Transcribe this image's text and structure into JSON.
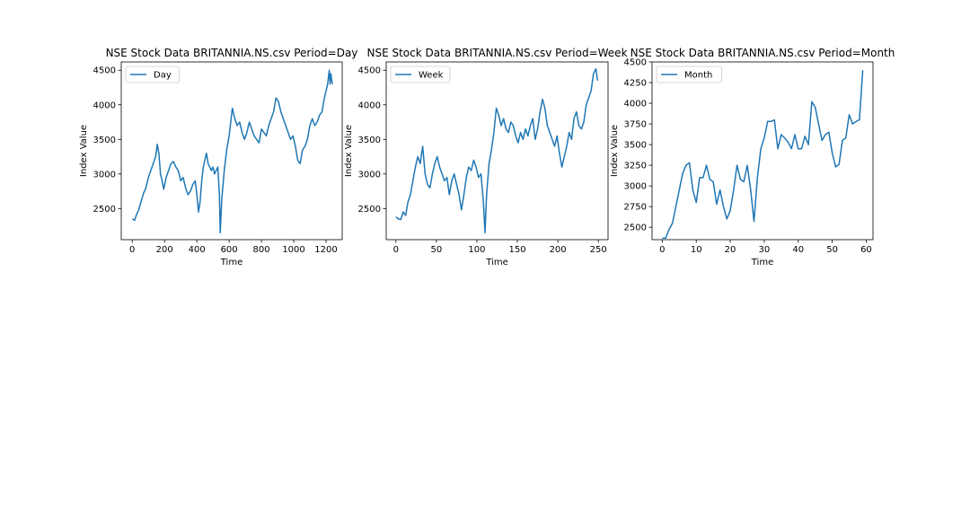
{
  "line_color": "#1f77b4",
  "chart_data": [
    {
      "type": "line",
      "title": "NSE Stock Data BRITANNIA.NS.csv Period=Day",
      "xlabel": "Time",
      "ylabel": "Index Value",
      "xlim": [
        -68,
        1300
      ],
      "ylim": [
        2050,
        4620
      ],
      "xticks": [
        0,
        200,
        400,
        600,
        800,
        1000,
        1200
      ],
      "yticks": [
        2500,
        3000,
        3500,
        4000,
        4500
      ],
      "grid": false,
      "legend_position": "upper left",
      "series": [
        {
          "name": "Day",
          "x": [
            0,
            15,
            25,
            40,
            55,
            70,
            85,
            100,
            115,
            130,
            145,
            155,
            165,
            175,
            185,
            195,
            210,
            225,
            240,
            255,
            270,
            285,
            300,
            315,
            330,
            345,
            360,
            375,
            390,
            400,
            410,
            420,
            430,
            440,
            450,
            460,
            470,
            480,
            490,
            500,
            510,
            520,
            530,
            540,
            545,
            555,
            570,
            585,
            600,
            610,
            620,
            635,
            650,
            665,
            680,
            695,
            710,
            725,
            740,
            755,
            770,
            785,
            800,
            815,
            830,
            845,
            860,
            875,
            890,
            905,
            920,
            935,
            950,
            965,
            980,
            995,
            1010,
            1025,
            1040,
            1055,
            1070,
            1085,
            1100,
            1115,
            1130,
            1145,
            1160,
            1175,
            1190,
            1200,
            1210,
            1215,
            1220,
            1225,
            1230,
            1235,
            1240
          ],
          "y": [
            2350,
            2330,
            2400,
            2480,
            2600,
            2720,
            2800,
            2950,
            3050,
            3150,
            3250,
            3430,
            3300,
            3000,
            2900,
            2780,
            2950,
            3050,
            3150,
            3180,
            3100,
            3050,
            2900,
            2950,
            2800,
            2700,
            2750,
            2850,
            2900,
            2700,
            2450,
            2600,
            2900,
            3100,
            3200,
            3300,
            3150,
            3100,
            3050,
            3100,
            3000,
            3050,
            3100,
            2700,
            2150,
            2650,
            3050,
            3350,
            3550,
            3750,
            3950,
            3800,
            3700,
            3750,
            3600,
            3500,
            3600,
            3750,
            3650,
            3550,
            3500,
            3450,
            3650,
            3600,
            3550,
            3700,
            3800,
            3900,
            4100,
            4050,
            3900,
            3800,
            3700,
            3600,
            3500,
            3550,
            3400,
            3200,
            3150,
            3350,
            3400,
            3500,
            3700,
            3800,
            3700,
            3750,
            3850,
            3900,
            4100,
            4200,
            4300,
            4400,
            4500,
            4300,
            4450,
            4350,
            4300
          ]
        }
      ]
    },
    {
      "type": "line",
      "title": "NSE Stock Data BRITANNIA.NS.csv Period=Week",
      "xlabel": "Time",
      "ylabel": "Index Value",
      "xlim": [
        -12,
        262
      ],
      "ylim": [
        2050,
        4620
      ],
      "xticks": [
        0,
        50,
        100,
        150,
        200,
        250
      ],
      "yticks": [
        2500,
        3000,
        3500,
        4000,
        4500
      ],
      "grid": false,
      "legend_position": "upper left",
      "series": [
        {
          "name": "Week",
          "x": [
            0,
            3,
            6,
            9,
            12,
            15,
            18,
            21,
            24,
            27,
            30,
            33,
            36,
            39,
            42,
            45,
            48,
            51,
            54,
            57,
            60,
            63,
            66,
            69,
            72,
            75,
            78,
            81,
            84,
            87,
            90,
            93,
            96,
            99,
            102,
            105,
            108,
            110,
            112,
            115,
            118,
            121,
            124,
            127,
            130,
            133,
            136,
            139,
            142,
            145,
            148,
            151,
            154,
            157,
            160,
            163,
            166,
            169,
            172,
            175,
            178,
            181,
            184,
            187,
            190,
            193,
            196,
            199,
            202,
            205,
            208,
            211,
            214,
            217,
            220,
            223,
            226,
            229,
            232,
            235,
            238,
            241,
            244,
            247,
            249
          ],
          "y": [
            2380,
            2350,
            2340,
            2450,
            2400,
            2600,
            2700,
            2900,
            3100,
            3250,
            3150,
            3400,
            3000,
            2850,
            2800,
            3000,
            3150,
            3250,
            3100,
            3000,
            2900,
            2950,
            2700,
            2900,
            3000,
            2850,
            2700,
            2480,
            2700,
            2950,
            3100,
            3050,
            3200,
            3100,
            2950,
            3000,
            2600,
            2150,
            2700,
            3150,
            3350,
            3600,
            3950,
            3850,
            3700,
            3800,
            3650,
            3600,
            3750,
            3700,
            3550,
            3450,
            3600,
            3500,
            3650,
            3550,
            3700,
            3800,
            3500,
            3650,
            3900,
            4080,
            3950,
            3700,
            3600,
            3500,
            3400,
            3550,
            3300,
            3100,
            3250,
            3400,
            3600,
            3500,
            3800,
            3900,
            3700,
            3650,
            3750,
            4000,
            4100,
            4200,
            4450,
            4520,
            4350
          ]
        }
      ]
    },
    {
      "type": "line",
      "title": "NSE Stock Data BRITANNIA.NS.csv Period=Month",
      "xlabel": "Time",
      "ylabel": "Index Value",
      "xlim": [
        -3,
        62
      ],
      "ylim": [
        2350,
        4500
      ],
      "xticks": [
        0,
        10,
        20,
        30,
        40,
        50,
        60
      ],
      "yticks": [
        2500,
        2750,
        3000,
        3250,
        3500,
        3750,
        4000,
        4250,
        4500
      ],
      "grid": false,
      "legend_position": "upper left",
      "series": [
        {
          "name": "Month",
          "x": [
            0,
            1,
            2,
            3,
            4,
            5,
            6,
            7,
            8,
            9,
            10,
            11,
            12,
            13,
            14,
            15,
            16,
            17,
            18,
            19,
            20,
            21,
            22,
            23,
            24,
            25,
            26,
            27,
            28,
            29,
            30,
            31,
            32,
            33,
            34,
            35,
            36,
            37,
            38,
            39,
            40,
            41,
            42,
            43,
            44,
            45,
            46,
            47,
            48,
            49,
            50,
            51,
            52,
            53,
            54,
            55,
            56,
            57,
            58,
            59
          ],
          "y": [
            2370,
            2370,
            2470,
            2550,
            2750,
            2950,
            3150,
            3250,
            3280,
            2950,
            2800,
            3100,
            3100,
            3250,
            3080,
            3050,
            2780,
            2950,
            2750,
            2600,
            2700,
            2950,
            3250,
            3080,
            3050,
            3250,
            2950,
            2570,
            3100,
            3450,
            3580,
            3780,
            3780,
            3800,
            3450,
            3620,
            3580,
            3530,
            3450,
            3620,
            3450,
            3450,
            3600,
            3500,
            4020,
            3950,
            3750,
            3550,
            3620,
            3650,
            3400,
            3230,
            3260,
            3550,
            3580,
            3860,
            3750,
            3780,
            3800,
            4400
          ]
        }
      ]
    }
  ]
}
